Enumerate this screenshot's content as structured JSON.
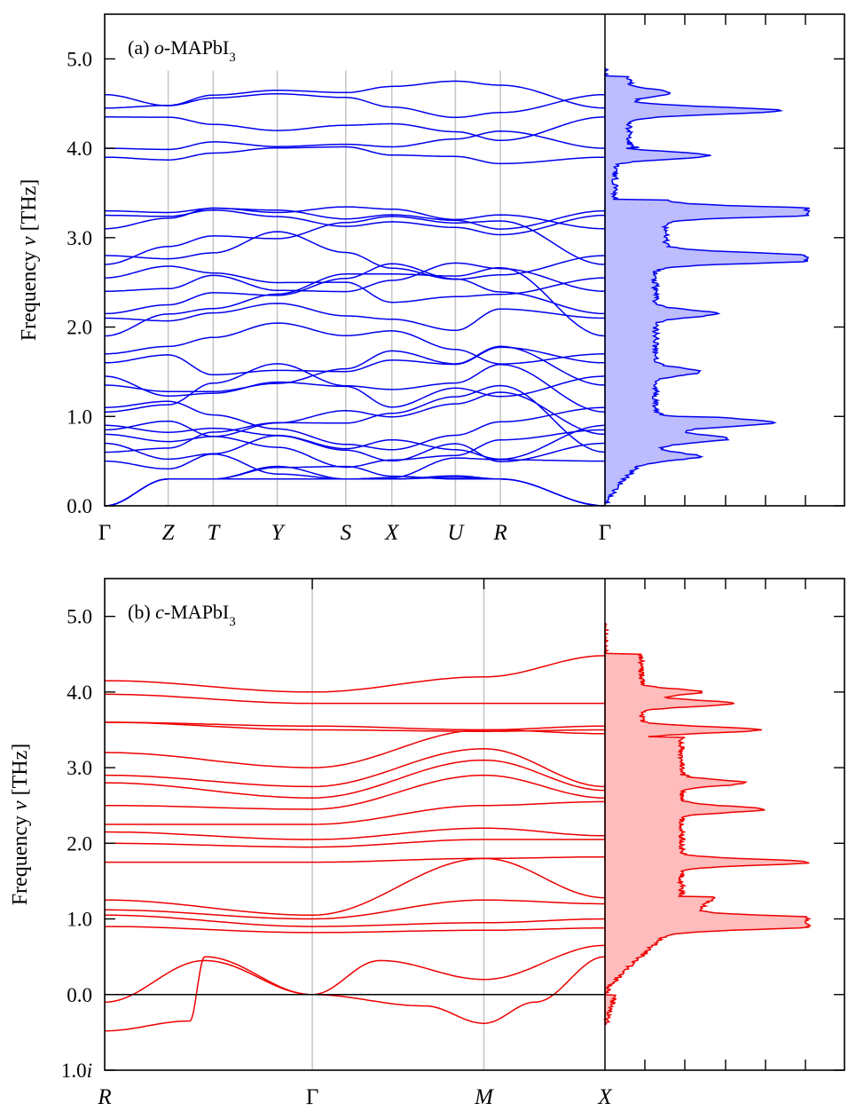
{
  "colors": {
    "panel_a": "#0000ee",
    "panel_b": "#ee0000",
    "dos_fill_a": "#bcbcff",
    "dos_fill_b": "#ffbcbc",
    "sym_line": "#c8c8c8"
  },
  "chart_data": [
    {
      "type": "line",
      "panel": "a",
      "label_prefix": "(a) ",
      "label_italic": "o",
      "label_rest": "-MAPbI",
      "label_sub": "3",
      "ylabel": "Frequency ν [THz]",
      "ylabel_main": "Frequency ",
      "ylabel_nu": "ν",
      "ylabel_unit": " [THz]",
      "ylim": [
        0.0,
        5.5
      ],
      "yticks": [
        0.0,
        1.0,
        2.0,
        3.0,
        4.0,
        5.0
      ],
      "ytick_labels": [
        "0.0",
        "1.0",
        "2.0",
        "3.0",
        "4.0",
        "5.0"
      ],
      "kpoints": [
        {
          "label": "Γ",
          "x": 0.0
        },
        {
          "label": "Z",
          "x": 0.127
        },
        {
          "label": "T",
          "x": 0.217
        },
        {
          "label": "Y",
          "x": 0.345
        },
        {
          "label": "S",
          "x": 0.482
        },
        {
          "label": "X",
          "x": 0.574
        },
        {
          "label": "U",
          "x": 0.701
        },
        {
          "label": "R",
          "x": 0.791
        },
        {
          "label": "Γ",
          "x": 1.0
        }
      ],
      "bands_at_gamma_THz": [
        0.0,
        0.0,
        0.0,
        0.5,
        0.6,
        0.7,
        0.8,
        0.85,
        0.9,
        1.05,
        1.1,
        1.35,
        1.45,
        1.6,
        1.7,
        1.9,
        2.1,
        2.15,
        2.4,
        2.55,
        2.7,
        2.8,
        3.1,
        3.25,
        3.3,
        3.9,
        4.0,
        4.35,
        4.45,
        4.6
      ],
      "dos": {
        "peaks_THz": [
          0.55,
          0.75,
          0.93,
          1.5,
          2.15,
          2.75,
          2.8,
          3.28,
          3.3,
          3.92,
          4.42,
          4.62
        ],
        "peak_heights": [
          0.35,
          0.42,
          0.6,
          0.3,
          0.4,
          0.85,
          0.65,
          0.95,
          0.9,
          0.62,
          1.0,
          0.26
        ]
      }
    },
    {
      "type": "line",
      "panel": "b",
      "label_prefix": "(b) ",
      "label_italic": "c",
      "label_rest": "-MAPbI",
      "label_sub": "3",
      "ylabel": "Frequency ν [THz]",
      "ylabel_main": "Frequency ",
      "ylabel_nu": "ν",
      "ylabel_unit": " [THz]",
      "ylim": [
        -1.0,
        5.5
      ],
      "yticks": [
        -1.0,
        0.0,
        1.0,
        2.0,
        3.0,
        4.0,
        5.0
      ],
      "ytick_labels": [
        "1.0i",
        "0.0",
        "1.0",
        "2.0",
        "3.0",
        "4.0",
        "5.0"
      ],
      "kpoints": [
        {
          "label": "R",
          "x": 0.0
        },
        {
          "label": "Γ",
          "x": 0.415
        },
        {
          "label": "M",
          "x": 0.758
        },
        {
          "label": "X",
          "x": 1.0
        }
      ],
      "bands": [
        {
          "R": -0.48,
          "G": 0.0,
          "M": -0.38,
          "X": 0.5,
          "shape": "imag"
        },
        {
          "R": -0.1,
          "G": 0.0,
          "M": 0.2,
          "X": 0.65,
          "shape": "acoustic"
        },
        {
          "R": 0.9,
          "G": 0.82,
          "M": 0.85,
          "X": 0.88
        },
        {
          "R": 1.05,
          "G": 0.9,
          "M": 0.95,
          "X": 1.0
        },
        {
          "R": 1.12,
          "G": 1.0,
          "M": 1.25,
          "X": 1.2
        },
        {
          "R": 1.25,
          "G": 1.05,
          "M": 1.8,
          "X": 1.28
        },
        {
          "R": 1.75,
          "G": 1.75,
          "M": 1.8,
          "X": 1.82
        },
        {
          "R": 2.0,
          "G": 1.95,
          "M": 2.05,
          "X": 2.05
        },
        {
          "R": 2.15,
          "G": 2.05,
          "M": 2.2,
          "X": 2.1
        },
        {
          "R": 2.25,
          "G": 2.25,
          "M": 2.5,
          "X": 2.55
        },
        {
          "R": 2.5,
          "G": 2.45,
          "M": 2.9,
          "X": 2.6
        },
        {
          "R": 2.8,
          "G": 2.6,
          "M": 3.1,
          "X": 2.7
        },
        {
          "R": 2.9,
          "G": 2.75,
          "M": 3.25,
          "X": 2.75
        },
        {
          "R": 3.2,
          "G": 3.0,
          "M": 3.5,
          "X": 3.45
        },
        {
          "R": 3.6,
          "G": 3.5,
          "M": 3.48,
          "X": 3.5
        },
        {
          "R": 3.6,
          "G": 3.55,
          "M": 3.5,
          "X": 3.55
        },
        {
          "R": 3.97,
          "G": 3.85,
          "M": 3.85,
          "X": 3.85
        },
        {
          "R": 4.15,
          "G": 4.0,
          "M": 4.2,
          "X": 4.48
        }
      ],
      "dos": {
        "peaks_THz": [
          0.9,
          1.0,
          1.75,
          2.45,
          2.8,
          3.5,
          3.85,
          4.0
        ],
        "peak_heights": [
          0.9,
          1.0,
          0.85,
          0.55,
          0.42,
          0.78,
          0.62,
          0.4
        ]
      }
    }
  ]
}
